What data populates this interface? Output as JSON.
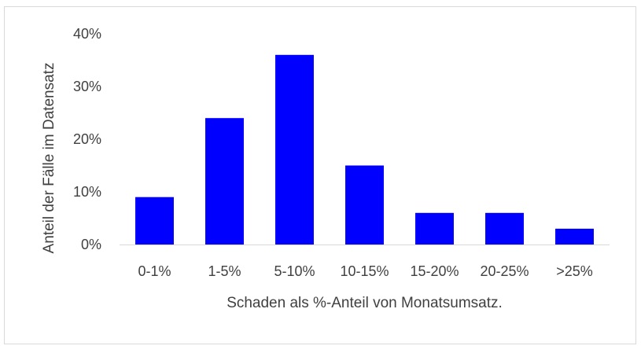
{
  "chart_data": {
    "type": "bar",
    "title": "",
    "xlabel": "Schaden als %-Anteil von Monatsumsatz.",
    "ylabel": "Anteil der Fälle im Datensatz",
    "categories": [
      "0-1%",
      "1-5%",
      "5-10%",
      "10-15%",
      "15-20%",
      "20-25%",
      ">25%"
    ],
    "values": [
      9,
      24,
      36,
      15,
      6,
      6,
      3
    ],
    "ylim": [
      0,
      40
    ],
    "yticks": [
      0,
      10,
      20,
      30,
      40
    ],
    "ytick_labels": [
      "0%",
      "10%",
      "20%",
      "30%",
      "40%"
    ],
    "grid": false,
    "legend": "none",
    "bar_color": "#0000FF",
    "axis_color": "#D9D9D9",
    "text_color": "#404040"
  }
}
